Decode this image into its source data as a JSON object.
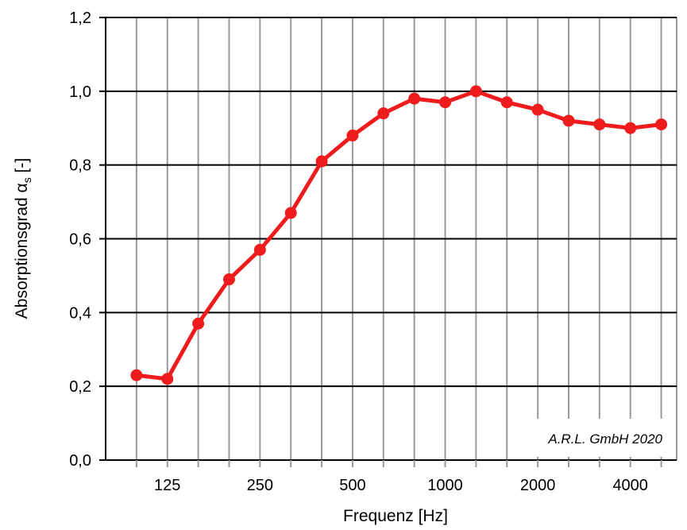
{
  "chart_data": {
    "type": "line",
    "x": [
      "100",
      "125",
      "160",
      "200",
      "250",
      "315",
      "400",
      "500",
      "630",
      "800",
      "1000",
      "1250",
      "1600",
      "2000",
      "2500",
      "3150",
      "4000",
      "5000"
    ],
    "x_tick_labels": [
      "125",
      "250",
      "500",
      "1000",
      "2000",
      "4000"
    ],
    "series": [
      {
        "values": [
          0.23,
          0.22,
          0.37,
          0.49,
          0.57,
          0.67,
          0.81,
          0.88,
          0.94,
          0.98,
          0.97,
          1.0,
          0.97,
          0.95,
          0.92,
          0.91,
          0.9,
          0.91
        ]
      }
    ],
    "xlabel": "Frequenz [Hz]",
    "ylabel_prefix": "Absorptionsgrad α",
    "ylabel_sub": "s",
    "ylabel_suffix": " [-]",
    "ylim": [
      0,
      1.2
    ],
    "y_tick_labels": [
      "0,0",
      "0,2",
      "0,4",
      "0,6",
      "0,8",
      "1,0",
      "1,2"
    ],
    "annotation": "A.R.L. GmbH 2020",
    "grid": true,
    "line_color": "#ee1c1c",
    "major_grid_color": "#000000",
    "minor_grid_color": "#999999"
  }
}
